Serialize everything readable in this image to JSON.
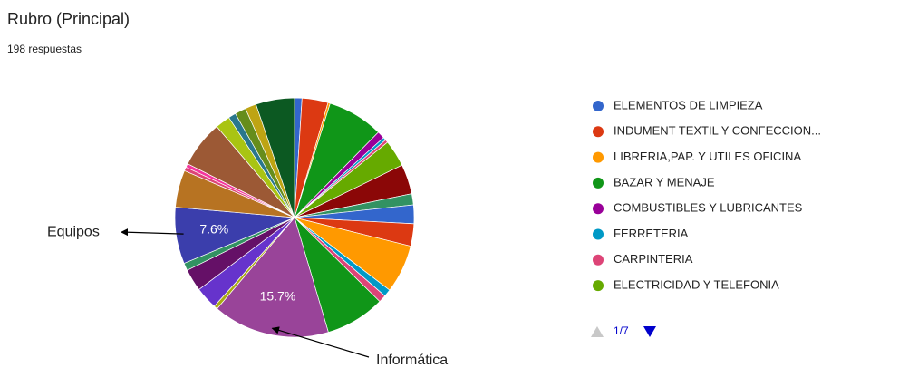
{
  "chart_data": {
    "type": "pie",
    "title": "Rubro (Principal)",
    "subtitle": "198 respuestas",
    "categories": [
      "ELEMENTOS DE LIMPIEZA",
      "INDUMENT TEXTIL Y CONFECCION...",
      "LIBRERIA,PAP. Y UTILES OFICINA",
      "BAZAR Y MENAJE",
      "COMBUSTIBLES Y LUBRICANTES",
      "FERRETERIA",
      "CARPINTERIA",
      "ELECTRICIDAD Y TELEFONIA",
      null,
      null,
      null,
      null,
      null,
      null,
      null,
      null,
      "Informática",
      null,
      null,
      null,
      null,
      "Equipos",
      null,
      null,
      null,
      null,
      null,
      null,
      null,
      null,
      null
    ],
    "values": [
      1.0,
      3.5,
      0.3,
      7.5,
      1.0,
      0.4,
      0.4,
      3.6,
      4.0,
      1.5,
      2.5,
      3.0,
      6.5,
      1.0,
      1.0,
      8.0,
      15.7,
      0.5,
      3.0,
      3.0,
      1.0,
      7.6,
      5.0,
      0.5,
      0.5,
      6.3,
      2.0,
      1.0,
      1.5,
      1.5,
      5.2
    ],
    "value_labels": [
      null,
      null,
      null,
      null,
      null,
      null,
      null,
      null,
      null,
      null,
      null,
      null,
      null,
      null,
      null,
      null,
      "15.7%",
      null,
      null,
      null,
      null,
      "7.6%",
      null,
      null,
      null,
      null,
      null,
      null,
      null,
      null,
      null
    ],
    "colors": [
      "#3366cc",
      "#dc3912",
      "#ff9900",
      "#109618",
      "#990099",
      "#0099c6",
      "#dd4477",
      "#66aa00",
      "#8b0707",
      "#329262",
      "#3366cc",
      "#dc3912",
      "#ff9900",
      "#0099c6",
      "#dd4477",
      "#109618",
      "#994499",
      "#aaaa11",
      "#6633cc",
      "#651067",
      "#329262",
      "#3b3eac",
      "#b77322",
      "#dd4477",
      "#f4359e",
      "#9c5935",
      "#a9c413",
      "#2a778d",
      "#668d1c",
      "#bea413",
      "#0c5922"
    ],
    "legend": "right",
    "legend_pager": "1/7"
  }
}
